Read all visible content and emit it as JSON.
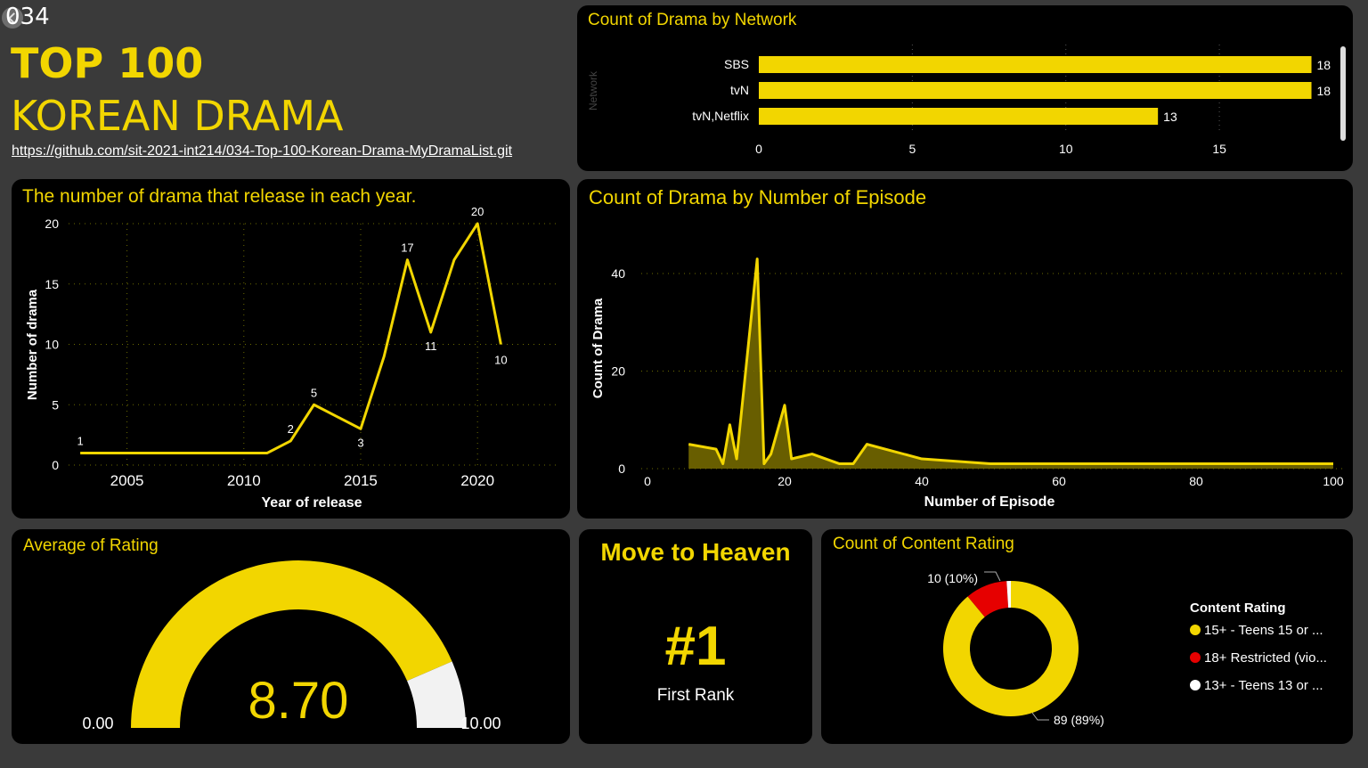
{
  "header": {
    "id": "034",
    "title_line1": "TOP 100",
    "title_line2": "KOREAN DRAMA",
    "repo_link": "https://github.com/sit-2021-int214/034-Top-100-Korean-Drama-MyDramaList.git"
  },
  "colors": {
    "accent": "#f2d600",
    "red": "#e60000",
    "white": "#f2f2f2",
    "panel": "#000000",
    "background": "#3a3a3a"
  },
  "network_panel": {
    "title": "Count of Drama by Network",
    "ylabel": "Network"
  },
  "year_panel": {
    "title": "The number of drama that release in each year."
  },
  "episode_panel": {
    "title": "Count of Drama by Number of Episode"
  },
  "rating_panel": {
    "title": "Average of Rating",
    "value": "8.70",
    "min": "0.00",
    "max": "10.00"
  },
  "top_panel": {
    "title": "Move to Heaven",
    "rank": "#1",
    "rank_label": "First Rank"
  },
  "content_panel": {
    "title": "Count of Content Rating",
    "legend_title": "Content Rating",
    "legend": [
      {
        "label": "15+ - Teens 15 or ...",
        "color": "#f2d600"
      },
      {
        "label": "18+ Restricted (vio...",
        "color": "#e60000"
      },
      {
        "label": "13+ - Teens 13 or ...",
        "color": "#ffffff"
      }
    ],
    "label_10": "10 (10%)",
    "label_89": "89 (89%)"
  },
  "chart_data": [
    {
      "type": "bar",
      "orientation": "horizontal",
      "title": "Count of Drama by Network",
      "ylabel": "Network",
      "categories": [
        "SBS",
        "tvN",
        "tvN,Netflix"
      ],
      "values": [
        18,
        18,
        13
      ],
      "xlim": [
        0,
        19
      ],
      "xticks": [
        0,
        5,
        10,
        15
      ]
    },
    {
      "type": "line",
      "title": "The number of drama that release in each year.",
      "xlabel": "Year of release",
      "ylabel": "Number of drama",
      "x": [
        2003,
        2004,
        2005,
        2006,
        2007,
        2008,
        2009,
        2010,
        2011,
        2012,
        2013,
        2014,
        2015,
        2016,
        2017,
        2018,
        2019,
        2020,
        2021
      ],
      "y": [
        1,
        1,
        1,
        1,
        1,
        1,
        1,
        1,
        1,
        2,
        5,
        4,
        3,
        9,
        17,
        11,
        17,
        20,
        10
      ],
      "point_labels": {
        "2003": "1",
        "2012": "2",
        "2013": "5",
        "2015": "3",
        "2017": "17",
        "2018": "11",
        "2020": "20",
        "2021": "10"
      },
      "xticks": [
        2005,
        2010,
        2015,
        2020
      ],
      "yticks": [
        0,
        5,
        10,
        15,
        20
      ],
      "xlim": [
        2002.5,
        2023.5
      ],
      "ylim": [
        0,
        20
      ]
    },
    {
      "type": "area",
      "title": "Count of Drama by Number of Episode",
      "xlabel": "Number of Episode",
      "ylabel": "Count of Drama",
      "x": [
        6,
        8,
        10,
        11,
        12,
        13,
        16,
        17,
        18,
        20,
        21,
        24,
        28,
        30,
        32,
        40,
        50,
        100
      ],
      "y": [
        5,
        4.5,
        4,
        1,
        9,
        2,
        43,
        1,
        3,
        13,
        2,
        3,
        1,
        1,
        5,
        2,
        1,
        1
      ],
      "xticks": [
        0,
        20,
        40,
        60,
        80,
        100
      ],
      "yticks": [
        0,
        20,
        40
      ],
      "xlim": [
        0,
        100
      ],
      "ylim": [
        0,
        44
      ]
    },
    {
      "type": "gauge",
      "title": "Average of Rating",
      "value": 8.7,
      "min": 0,
      "max": 10
    },
    {
      "type": "pie",
      "donut": true,
      "title": "Count of Content Rating",
      "categories": [
        "15+ - Teens 15 or ...",
        "18+ Restricted (vio...",
        "13+ - Teens 13 or ..."
      ],
      "values": [
        89,
        10,
        1
      ]
    }
  ]
}
